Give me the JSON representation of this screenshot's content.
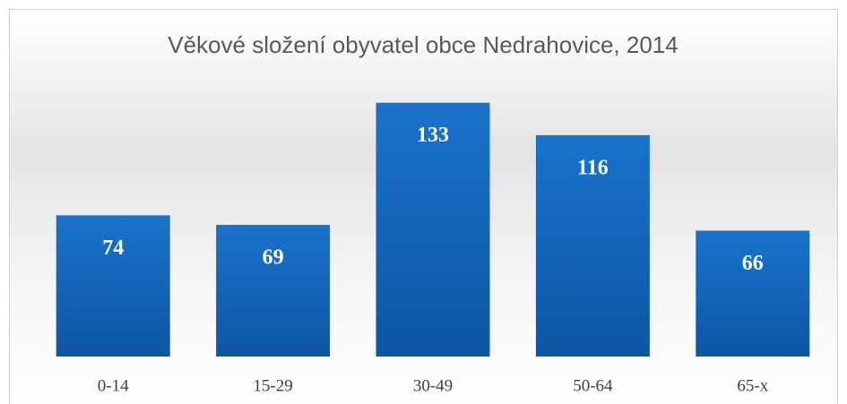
{
  "chart_data": {
    "type": "bar",
    "title": "Věkové složení obyvatel obce Nedrahovice, 2014",
    "categories": [
      "0-14",
      "15-29",
      "30-49",
      "50-64",
      "65-x"
    ],
    "values": [
      74,
      69,
      133,
      116,
      66
    ],
    "color": "#1467c0"
  }
}
